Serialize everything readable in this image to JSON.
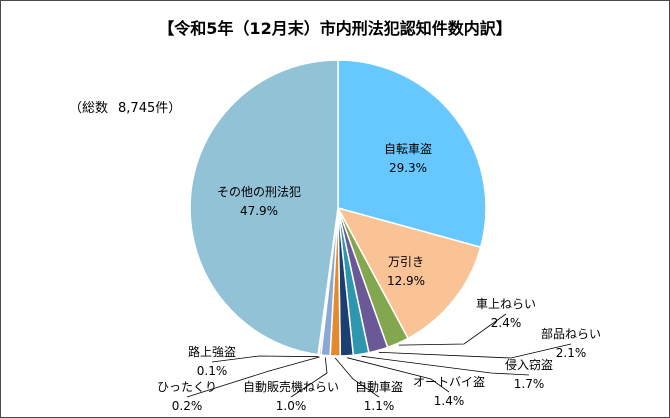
{
  "chart_data": {
    "type": "pie",
    "title": "【令和5年（12月末）市内刑法犯認知件数内訳】",
    "total_label": "（総数",
    "total_value": "8,745件）",
    "slices": [
      {
        "label": "自転車盗",
        "value": 29.3,
        "value_label": "29.3%",
        "color": "#66c8ff"
      },
      {
        "label": "万引き",
        "value": 12.9,
        "value_label": "12.9%",
        "color": "#f9c396"
      },
      {
        "label": "車上ねらい",
        "value": 2.4,
        "value_label": "2.4%",
        "color": "#83a74f"
      },
      {
        "label": "部品ねらい",
        "value": 2.1,
        "value_label": "2.1%",
        "color": "#6b5896"
      },
      {
        "label": "侵入窃盗",
        "value": 1.7,
        "value_label": "1.7%",
        "color": "#2f97ad"
      },
      {
        "label": "オートバイ盗",
        "value": 1.4,
        "value_label": "1.4%",
        "color": "#1c3f73"
      },
      {
        "label": "自動車盗",
        "value": 1.1,
        "value_label": "1.1%",
        "color": "#e28a2c"
      },
      {
        "label": "自動販売機ねらい",
        "value": 1.0,
        "value_label": "1.0%",
        "color": "#8aa8d6"
      },
      {
        "label": "ひったくり",
        "value": 0.2,
        "value_label": "0.2%",
        "color": "#c45a56"
      },
      {
        "label": "路上強盗",
        "value": 0.1,
        "value_label": "0.1%",
        "color": "#b5d07a"
      },
      {
        "label": "その他の刑法犯",
        "value": 47.9,
        "value_label": "47.9%",
        "color": "#92c2d6"
      }
    ]
  }
}
